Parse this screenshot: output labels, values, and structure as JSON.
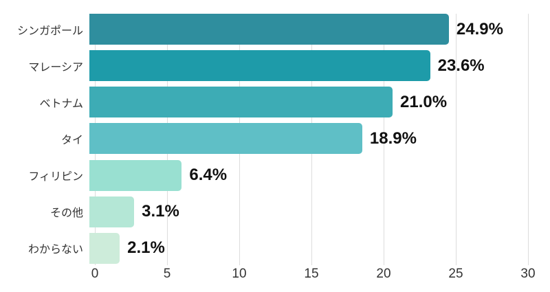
{
  "chart_data": {
    "type": "bar",
    "orientation": "horizontal",
    "title": "",
    "xlabel": "",
    "ylabel": "",
    "categories": [
      "シンガポール",
      "マレーシア",
      "ベトナム",
      "タイ",
      "フィリピン",
      "その他",
      "わからない"
    ],
    "values": [
      24.9,
      23.6,
      21.0,
      18.9,
      6.4,
      3.1,
      2.1
    ],
    "value_labels": [
      "24.9%",
      "23.6%",
      "21.0%",
      "18.9%",
      "6.4%",
      "3.1%",
      "2.1%"
    ],
    "bar_colors": [
      "#2F8E9E",
      "#1E9BA9",
      "#3DACB5",
      "#5FBFC6",
      "#99E0D1",
      "#B4E7D6",
      "#CDECDA"
    ],
    "xlim": [
      0,
      30
    ],
    "x_ticks": [
      "0",
      "5",
      "10",
      "15",
      "20",
      "25",
      "30"
    ],
    "grid": true,
    "legend": false
  },
  "styles": {
    "background": "#ffffff",
    "grid_color": "#dcdcdc",
    "category_label_color": "#333333",
    "value_label_color": "#111111",
    "tick_label_color": "#333333"
  }
}
